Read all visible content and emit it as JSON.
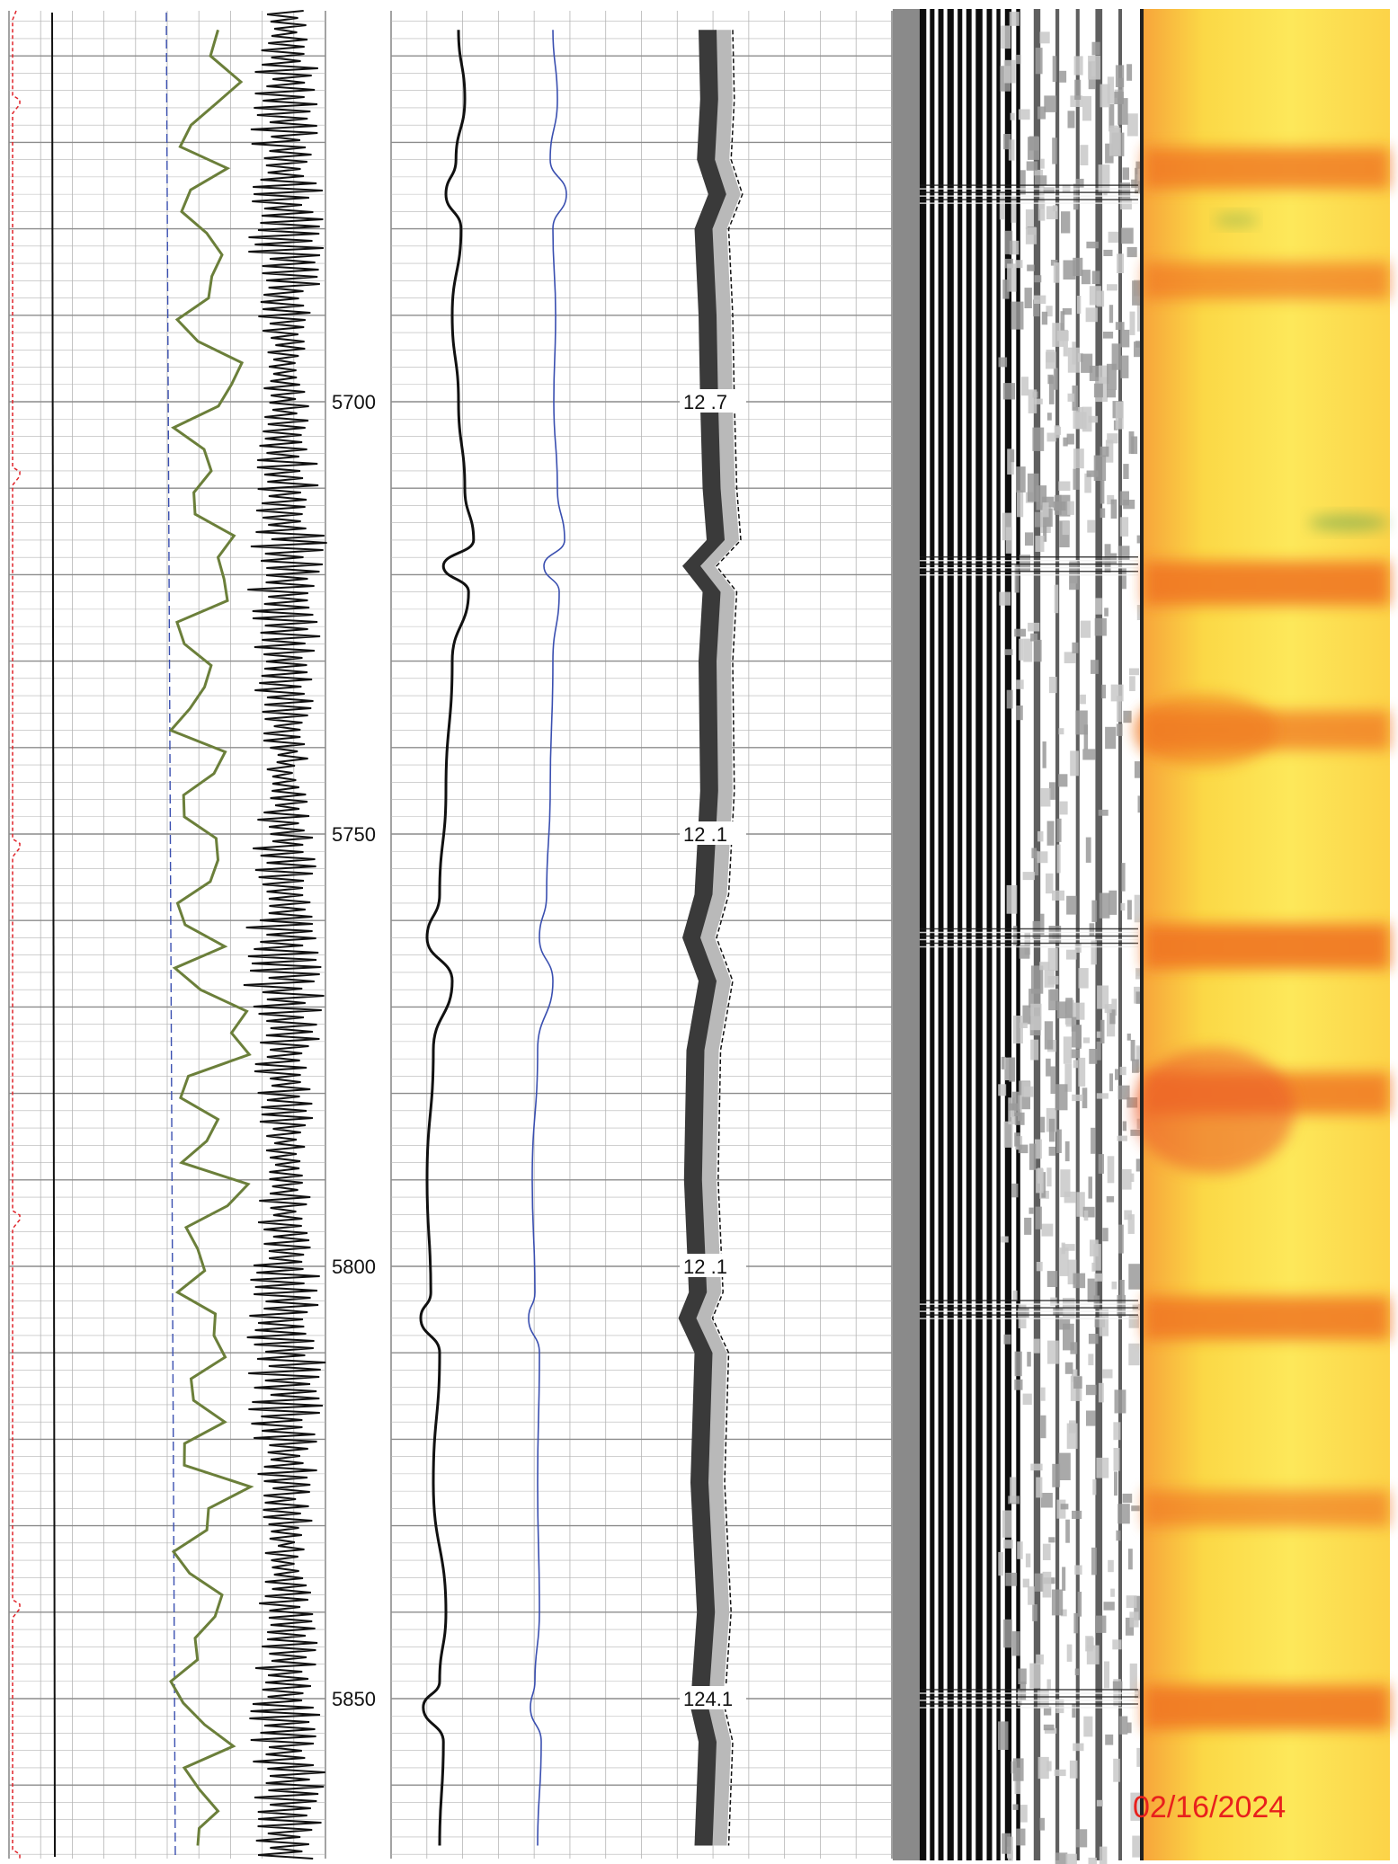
{
  "colors": {
    "grid": "#b5b5b5",
    "grid_major": "#8c8c8c",
    "caliper": "#e0242a",
    "gamma": "#6b7f3a",
    "blue_curve": "#3a4fb0",
    "black_curve": "#111111",
    "date": "#e8201c",
    "vdl_bg": "#8a8a8a"
  },
  "chart_data": {
    "type": "line",
    "title": "",
    "xlabel": "",
    "ylabel": "",
    "depth_range": [
      5655,
      5868
    ],
    "depth_labels": [
      5700,
      5750,
      5800,
      5850
    ],
    "temperature_labels": [
      {
        "depth": 5700,
        "text": "12 .7"
      },
      {
        "depth": 5750,
        "text": "12 .1"
      },
      {
        "depth": 5800,
        "text": "12 .1"
      },
      {
        "depth": 5850,
        "text": "124.1"
      }
    ],
    "collar_depths": [
      5676,
      5719,
      5762,
      5805,
      5850
    ],
    "amplitude_bands": [
      {
        "depth": 5673,
        "strength": 0.8
      },
      {
        "depth": 5686,
        "strength": 0.6
      },
      {
        "depth": 5721,
        "strength": 0.95
      },
      {
        "depth": 5738,
        "strength": 0.7
      },
      {
        "depth": 5763,
        "strength": 1.0
      },
      {
        "depth": 5780,
        "strength": 0.85
      },
      {
        "depth": 5806,
        "strength": 0.9
      },
      {
        "depth": 5828,
        "strength": 0.55
      },
      {
        "depth": 5851,
        "strength": 0.95
      }
    ],
    "series": [
      {
        "track": "gamma_ray",
        "depth": [
          5657,
          5663,
          5668,
          5673,
          5678,
          5683,
          5688,
          5693,
          5698,
          5703,
          5708,
          5713,
          5718,
          5723,
          5728,
          5733,
          5738,
          5743,
          5748,
          5753,
          5758,
          5763,
          5768,
          5773,
          5778,
          5783,
          5788,
          5793,
          5798,
          5803,
          5808,
          5813,
          5818,
          5823,
          5828,
          5833,
          5838,
          5843,
          5848,
          5853,
          5858,
          5863,
          5867
        ],
        "value": [
          0.55,
          0.72,
          0.35,
          0.62,
          0.28,
          0.58,
          0.48,
          0.4,
          0.65,
          0.22,
          0.5,
          0.38,
          0.55,
          0.62,
          0.3,
          0.45,
          0.2,
          0.52,
          0.3,
          0.55,
          0.25,
          0.6,
          0.42,
          0.65,
          0.33,
          0.55,
          0.28,
          0.62,
          0.4,
          0.25,
          0.52,
          0.35,
          0.6,
          0.3,
          0.48,
          0.22,
          0.58,
          0.38,
          0.2,
          0.45,
          0.3,
          0.55,
          0.4
        ]
      },
      {
        "track": "curve_a",
        "depth": [
          5657,
          5665,
          5672,
          5676,
          5680,
          5690,
          5700,
          5710,
          5716,
          5719,
          5722,
          5730,
          5745,
          5757,
          5762,
          5767,
          5775,
          5790,
          5803,
          5806,
          5810,
          5825,
          5840,
          5848,
          5851,
          5855,
          5867
        ],
        "value": [
          0.5,
          0.55,
          0.48,
          0.4,
          0.52,
          0.45,
          0.5,
          0.55,
          0.62,
          0.38,
          0.58,
          0.45,
          0.4,
          0.35,
          0.25,
          0.45,
          0.3,
          0.25,
          0.28,
          0.2,
          0.35,
          0.3,
          0.4,
          0.35,
          0.22,
          0.38,
          0.35
        ]
      },
      {
        "track": "curve_b",
        "depth": [
          5657,
          5665,
          5672,
          5676,
          5680,
          5690,
          5700,
          5710,
          5716,
          5719,
          5722,
          5730,
          5745,
          5757,
          5762,
          5767,
          5775,
          5790,
          5803,
          5806,
          5810,
          5825,
          5840,
          5848,
          5851,
          5855,
          5867
        ],
        "value": [
          0.55,
          0.6,
          0.52,
          0.7,
          0.55,
          0.58,
          0.56,
          0.6,
          0.68,
          0.45,
          0.62,
          0.55,
          0.52,
          0.48,
          0.4,
          0.55,
          0.38,
          0.32,
          0.35,
          0.28,
          0.4,
          0.38,
          0.4,
          0.35,
          0.3,
          0.42,
          0.38
        ]
      },
      {
        "track": "temperature",
        "depth": [
          5657,
          5665,
          5672,
          5676,
          5680,
          5690,
          5700,
          5710,
          5716,
          5719,
          5722,
          5730,
          5745,
          5757,
          5762,
          5767,
          5775,
          5790,
          5803,
          5806,
          5810,
          5825,
          5840,
          5848,
          5851,
          5855,
          5867
        ],
        "value": [
          0.5,
          0.52,
          0.48,
          0.62,
          0.45,
          0.5,
          0.52,
          0.55,
          0.6,
          0.3,
          0.55,
          0.5,
          0.52,
          0.45,
          0.3,
          0.5,
          0.35,
          0.32,
          0.38,
          0.25,
          0.45,
          0.4,
          0.48,
          0.42,
          0.4,
          0.5,
          0.45
        ]
      }
    ]
  },
  "footer": {
    "date": "02/16/2024"
  }
}
